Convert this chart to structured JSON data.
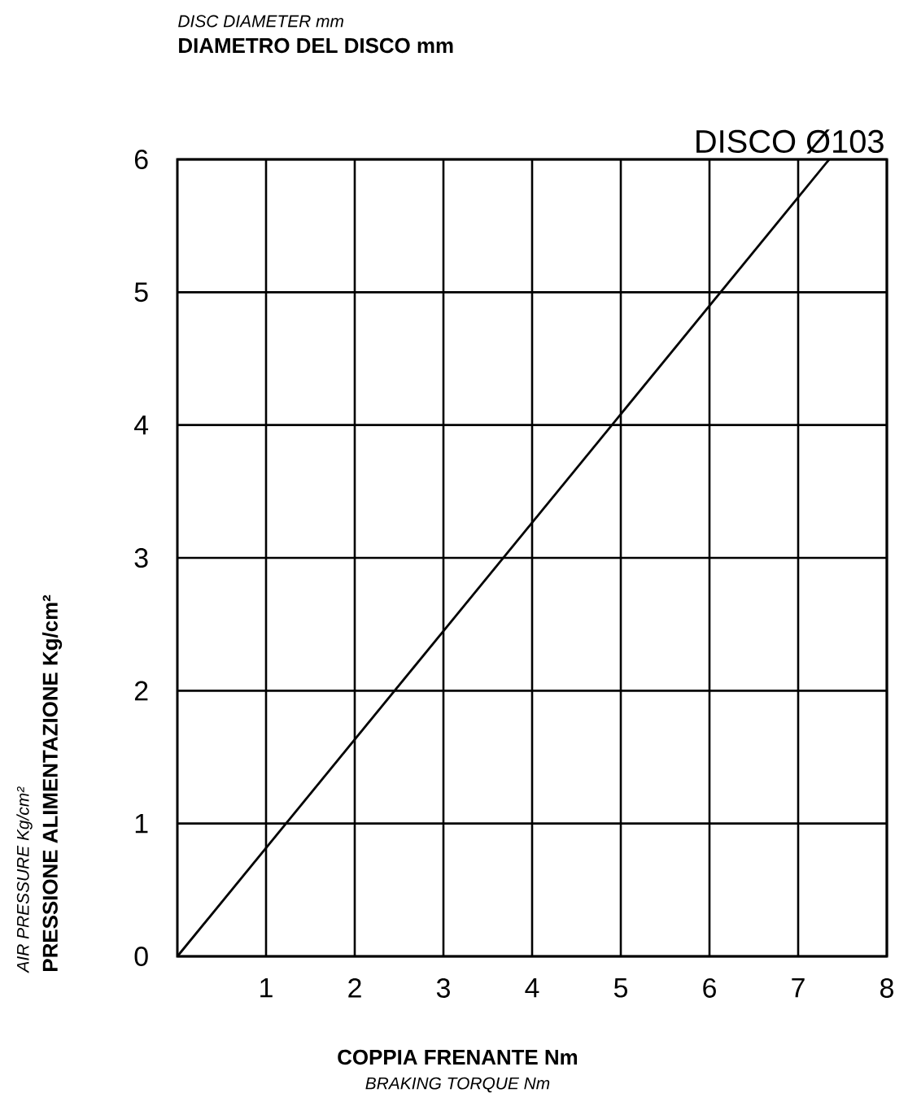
{
  "chart_data": {
    "type": "line",
    "subtitle": "DISC DIAMETER mm",
    "title": "DIAMETRO DEL DISCO mm",
    "xlabel": "COPPIA FRENANTE Nm",
    "ylabel": "PRESSIONE ALIMENTAZIONE Kg/cm²",
    "annotations": [
      "BRAKING TORQUE Nm",
      "AIR PRESSURE Kg/cm²"
    ],
    "series": [
      {
        "name": "DISCO Ø103",
        "color": "#000000",
        "x": [
          0,
          7.35
        ],
        "values": [
          0,
          6
        ]
      }
    ],
    "xlim": [
      0,
      8
    ],
    "ylim": [
      0,
      6
    ],
    "xticks": [
      1,
      2,
      3,
      4,
      5,
      6,
      7,
      8
    ],
    "yticks": [
      0,
      1,
      2,
      3,
      4,
      5,
      6
    ],
    "grid": true,
    "legend": false,
    "marker": "none",
    "line_style": "solid"
  }
}
